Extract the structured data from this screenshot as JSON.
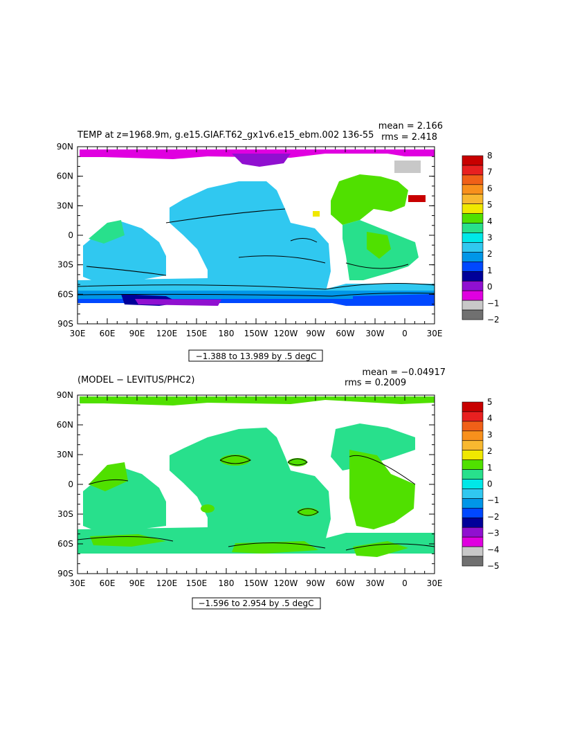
{
  "panels": [
    {
      "title": "TEMP at z=1968.9m, g.e15.GIAF.T62_gx1v6.e15_ebm.002 136-55",
      "mean_text": "mean = 2.166",
      "rms_text": "rms = 2.418",
      "range_note": "−1.388 to 13.989 by .5 degC",
      "colorbar_labels": [
        "8",
        "7",
        "6",
        "5",
        "4",
        "3",
        "2",
        "1",
        "0",
        "−1",
        "−2"
      ],
      "colorbar_colors": [
        "#c80000",
        "#e82020",
        "#f06018",
        "#f8901c",
        "#f8b830",
        "#f0e800",
        "#50e000",
        "#28e08c",
        "#00e8e8",
        "#30c8f0",
        "#0096e8",
        "#0048ff",
        "#000099",
        "#9010d0",
        "#e000e0",
        "#c8c8c8",
        "#707070"
      ]
    },
    {
      "title": "(MODEL − LEVITUS/PHC2)",
      "mean_text": "mean = −0.04917",
      "rms_text": "rms = 0.2009",
      "range_note": "−1.596 to 2.954 by .5 degC",
      "colorbar_labels": [
        "5",
        "4",
        "3",
        "2",
        "1",
        "0",
        "−1",
        "−2",
        "−3",
        "−4",
        "−5"
      ],
      "colorbar_colors": [
        "#c80000",
        "#e82020",
        "#f06018",
        "#f8901c",
        "#f8b830",
        "#f0e800",
        "#50e000",
        "#28e08c",
        "#00e8e8",
        "#30c8f0",
        "#0096e8",
        "#0048ff",
        "#000099",
        "#9010d0",
        "#e000e0",
        "#c8c8c8",
        "#707070"
      ]
    }
  ],
  "lon_labels": [
    "30E",
    "60E",
    "90E",
    "120E",
    "150E",
    "180",
    "150W",
    "120W",
    "90W",
    "60W",
    "30W",
    "0",
    "30E"
  ],
  "lat_labels": [
    "90N",
    "60N",
    "30N",
    "0",
    "30S",
    "60S",
    "90S"
  ]
}
